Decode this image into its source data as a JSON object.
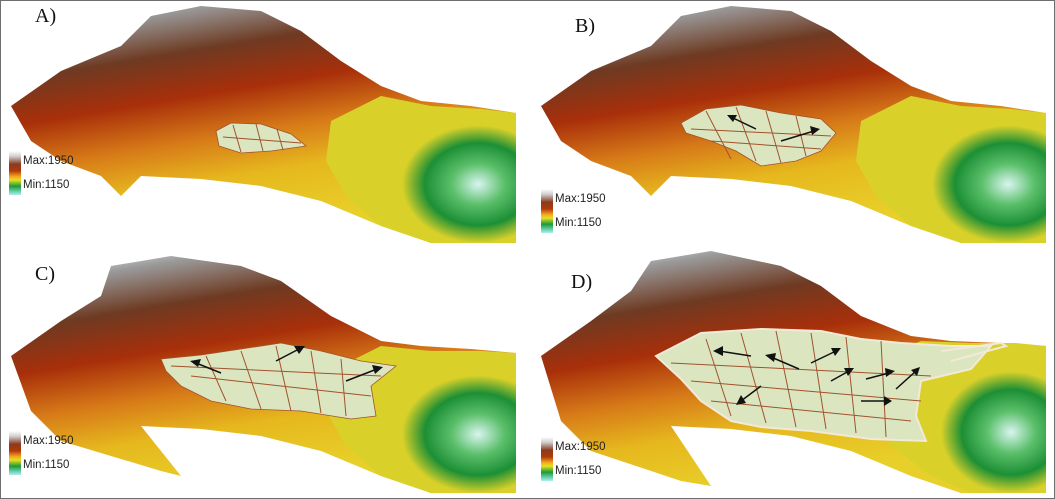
{
  "figure": {
    "panels": [
      {
        "label": "A)",
        "legend": {
          "max": "Max:1950",
          "min": "Min:1150"
        },
        "arrows": 0
      },
      {
        "label": "B)",
        "legend": {
          "max": "Max:1950",
          "min": "Min:1150"
        },
        "arrows": 2
      },
      {
        "label": "C)",
        "legend": {
          "max": "Max:1950",
          "min": "Min:1150"
        },
        "arrows": 3
      },
      {
        "label": "D)",
        "legend": {
          "max": "Max:1950",
          "min": "Min:1150"
        },
        "arrows": 8
      }
    ]
  },
  "colors": {
    "elevation_high": "#9a9a9a",
    "elevation_mid_high": "#8b2a08",
    "elevation_mid": "#e8a020",
    "elevation_low": "#1c8f35",
    "elevation_lowest": "#bff3f0",
    "urban_fill": "#dbe6c0",
    "road": "#a0522d"
  }
}
